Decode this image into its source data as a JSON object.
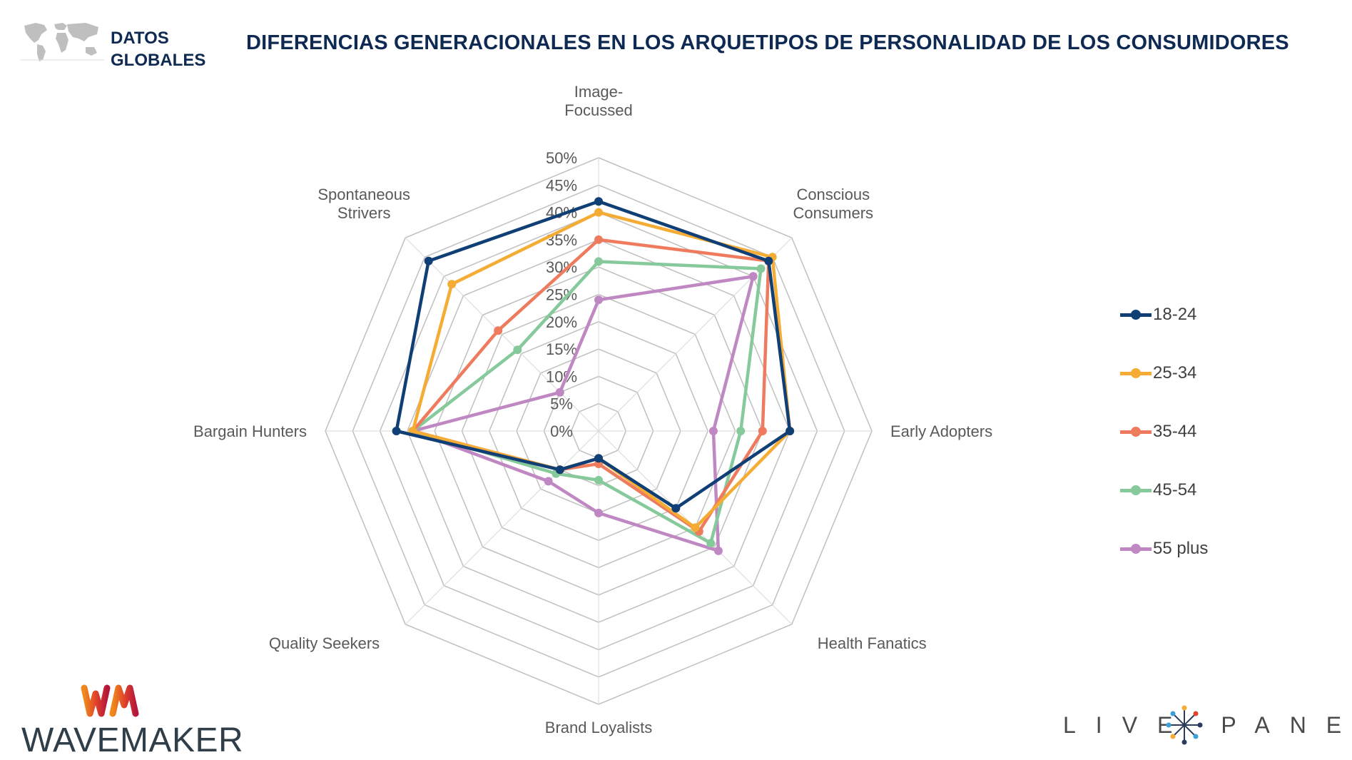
{
  "header": {
    "label_line1": "DATOS",
    "label_line2": "GLOBALES",
    "title": "DIFERENCIAS GENERACIONALES EN LOS ARQUETIPOS DE PERSONALIDAD DE LOS CONSUMIDORES"
  },
  "chart_data": {
    "type": "radar",
    "categories": [
      [
        "Image-",
        "Focussed"
      ],
      [
        "Conscious",
        "Consumers"
      ],
      [
        "Early Adopters"
      ],
      [
        "Health Fanatics"
      ],
      [
        "Brand Loyalists"
      ],
      [
        "Quality Seekers"
      ],
      [
        "Bargain Hunters"
      ],
      [
        "Spontaneous",
        "Strivers"
      ]
    ],
    "rmax": 50,
    "ticks": [
      0,
      5,
      10,
      15,
      20,
      25,
      30,
      35,
      40,
      45,
      50
    ],
    "tick_labels": [
      "0%",
      "5%",
      "10%",
      "15%",
      "20%",
      "25%",
      "30%",
      "35%",
      "40%",
      "45%",
      "50%"
    ],
    "series": [
      {
        "name": "18-24",
        "color": "#0f3f75",
        "values": [
          42,
          44,
          35,
          20,
          5,
          10,
          37,
          44
        ]
      },
      {
        "name": "25-34",
        "color": "#f5ac35",
        "values": [
          40,
          45,
          35,
          25,
          5,
          10,
          34,
          38
        ]
      },
      {
        "name": "35-44",
        "color": "#ee7b5d",
        "values": [
          35,
          44,
          30,
          26,
          6,
          10,
          34,
          26
        ]
      },
      {
        "name": "45-54",
        "color": "#86c99b",
        "values": [
          31,
          42,
          26,
          29,
          9,
          11,
          34,
          21
        ]
      },
      {
        "name": "55 plus",
        "color": "#c088c3",
        "values": [
          24,
          40,
          21,
          31,
          15,
          13,
          34,
          10
        ]
      }
    ]
  },
  "footer": {
    "brand_left": "WAVEMAKER",
    "brand_right_left": "LIVE",
    "brand_right_right": "PANEL"
  }
}
